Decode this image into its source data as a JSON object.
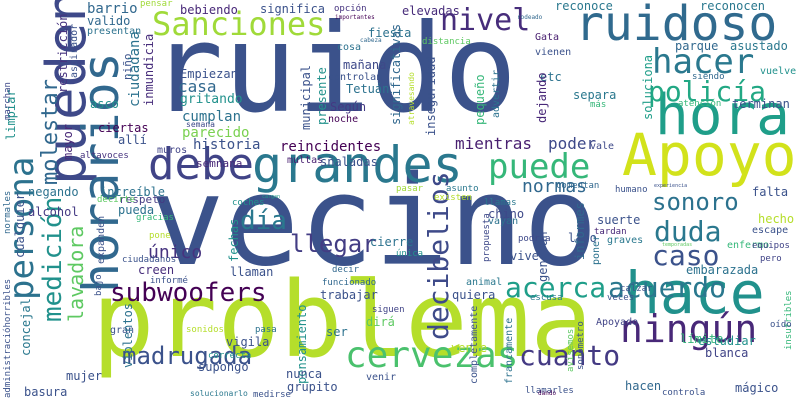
{
  "words": [
    {
      "text": "vecino",
      "color": "#3b528b"
    },
    {
      "text": "ruido",
      "color": "#3b528b"
    },
    {
      "text": "problema",
      "color": "#b5de2b"
    },
    {
      "text": "Apoyo",
      "color": "#d2e21b"
    },
    {
      "text": "grandes",
      "color": "#2a788e"
    },
    {
      "text": "hora",
      "color": "#1f9e89"
    },
    {
      "text": "hace",
      "color": "#21918c"
    },
    {
      "text": "ruidoso",
      "color": "#306a8e"
    },
    {
      "text": "debe",
      "color": "#414487"
    },
    {
      "text": "puede",
      "color": "#35b779"
    },
    {
      "text": "pueden",
      "color": "#3e4989"
    },
    {
      "text": "horarios",
      "color": "#31688e"
    },
    {
      "text": "persona",
      "color": "#2c728e"
    },
    {
      "text": "molestar",
      "color": "#31688e"
    },
    {
      "text": "Sanciones",
      "color": "#a0da39"
    },
    {
      "text": "cervezas",
      "color": "#4ac16d"
    },
    {
      "text": "ningún",
      "color": "#482878"
    },
    {
      "text": "subwoofers",
      "color": "#440154"
    },
    {
      "text": "caso",
      "color": "#3b528b"
    },
    {
      "text": "acuerdo",
      "color": "#2a788e"
    },
    {
      "text": "acerca",
      "color": "#1f9e89"
    },
    {
      "text": "policía",
      "color": "#22a884"
    },
    {
      "text": "decibelios",
      "color": "#3e4a89"
    },
    {
      "text": "madrugada",
      "color": "#3b528b"
    },
    {
      "text": "cuanto",
      "color": "#443a83"
    },
    {
      "text": "duda",
      "color": "#2a788e"
    },
    {
      "text": "sonoro",
      "color": "#2c728e"
    },
    {
      "text": "nivel",
      "color": "#472d7b"
    },
    {
      "text": "medición",
      "color": "#21918c"
    },
    {
      "text": "hacer",
      "color": "#2a788e"
    },
    {
      "text": "día",
      "color": "#2a788e"
    },
    {
      "text": "llegar",
      "color": "#433d84"
    },
    {
      "text": "normas",
      "color": "#31688e"
    },
    {
      "text": "único",
      "color": "#46337f"
    },
    {
      "text": "lavadora",
      "color": "#5ec962"
    },
    {
      "text": "historia",
      "color": "#3b528b"
    },
    {
      "text": "reincidentes",
      "color": "#440154"
    },
    {
      "text": "mientras",
      "color": "#481f70"
    },
    {
      "text": "poder",
      "color": "#3e4989"
    },
    {
      "text": "parecido",
      "color": "#7ad151"
    },
    {
      "text": "cumplan",
      "color": "#2c728e"
    },
    {
      "text": "casa",
      "color": "#31688e"
    },
    {
      "text": "gritando",
      "color": "#21918c"
    },
    {
      "text": "Empiezan",
      "color": "#3b528b"
    },
    {
      "text": "bebiendo",
      "color": "#482878"
    },
    {
      "text": "significa",
      "color": "#3b528b"
    },
    {
      "text": "elevadas",
      "color": "#472c7a"
    },
    {
      "text": "reconoce",
      "color": "#2a788e"
    },
    {
      "text": "reconocen",
      "color": "#2a788e"
    },
    {
      "text": "fiesta",
      "color": "#2c728e"
    },
    {
      "text": "mañana",
      "color": "#3e4989"
    },
    {
      "text": "controlan",
      "color": "#3b528b"
    },
    {
      "text": "Tetuán",
      "color": "#2c728e"
    },
    {
      "text": "Según",
      "color": "#443983"
    },
    {
      "text": "noche",
      "color": "#440154"
    },
    {
      "text": "municipal",
      "color": "#3b528b"
    },
    {
      "text": "presente",
      "color": "#21918c"
    },
    {
      "text": "significativas",
      "color": "#31688e"
    },
    {
      "text": "inseguridad",
      "color": "#3b528b"
    },
    {
      "text": "pequeño",
      "color": "#35b779"
    },
    {
      "text": "advertir",
      "color": "#2c728e"
    },
    {
      "text": "atravesando",
      "color": "#b5de2b"
    },
    {
      "text": "parque",
      "color": "#31688e"
    },
    {
      "text": "asustado",
      "color": "#2a788e"
    },
    {
      "text": "etc",
      "color": "#2c728e"
    },
    {
      "text": "dejando",
      "color": "#482878"
    },
    {
      "text": "separa",
      "color": "#2a788e"
    },
    {
      "text": "soluciona",
      "color": "#1f9e89"
    },
    {
      "text": "terminan",
      "color": "#3b528b"
    },
    {
      "text": "atención",
      "color": "#35b779"
    },
    {
      "text": "siendo",
      "color": "#31688e"
    },
    {
      "text": "vuelve",
      "color": "#21918c"
    },
    {
      "text": "vienen",
      "color": "#3b528b"
    },
    {
      "text": "más",
      "color": "#35b779"
    },
    {
      "text": "Gata",
      "color": "#481f70"
    },
    {
      "text": "barrio",
      "color": "#31688e"
    },
    {
      "text": "valido",
      "color": "#31688e"
    },
    {
      "text": "presentan",
      "color": "#2c728e"
    },
    {
      "text": "pensar",
      "color": "#a0da39"
    },
    {
      "text": "opción",
      "color": "#46337f"
    },
    {
      "text": "importantes",
      "color": "#440154"
    },
    {
      "text": "rodeado",
      "color": "#31688e"
    },
    {
      "text": "cosa",
      "color": "#2c728e"
    },
    {
      "text": "cabeza",
      "color": "#31688e"
    },
    {
      "text": "distancia",
      "color": "#5ec962"
    },
    {
      "text": "limpiar",
      "color": "#21918c"
    },
    {
      "text": "restricción",
      "color": "#46337f"
    },
    {
      "text": "aspirador",
      "color": "#3b528b"
    },
    {
      "text": "niño",
      "color": "#3b528b"
    },
    {
      "text": "ciudadana",
      "color": "#2c728e"
    },
    {
      "text": "inmundicia",
      "color": "#472d7b"
    },
    {
      "text": "asco",
      "color": "#21918c"
    },
    {
      "text": "semana",
      "color": "#3e4989"
    },
    {
      "text": "ciertas",
      "color": "#440154"
    },
    {
      "text": "allí",
      "color": "#3b528b"
    },
    {
      "text": "muros",
      "color": "#414487"
    },
    {
      "text": "mayor",
      "color": "#482878"
    },
    {
      "text": "altavoces",
      "color": "#46337f"
    },
    {
      "text": "vale",
      "color": "#3e4989"
    },
    {
      "text": "semnana",
      "color": "#482878"
    },
    {
      "text": "multas",
      "color": "#481f70"
    },
    {
      "text": "sñaladas",
      "color": "#3b528b"
    },
    {
      "text": "pasar",
      "color": "#a0da39"
    },
    {
      "text": "asunto",
      "color": "#2a788e"
    },
    {
      "text": "comentan",
      "color": "#31688e"
    },
    {
      "text": "humano",
      "color": "#3b528b"
    },
    {
      "text": "experiencia",
      "color": "#3b528b"
    },
    {
      "text": "falta",
      "color": "#3b528b"
    },
    {
      "text": "negando",
      "color": "#2c728e"
    },
    {
      "text": "increíble",
      "color": "#2c728e"
    },
    {
      "text": "respeto",
      "color": "#443a83"
    },
    {
      "text": "alcohol",
      "color": "#443a83"
    },
    {
      "text": "pueda",
      "color": "#2c728e"
    },
    {
      "text": "decirte",
      "color": "#5ec962"
    },
    {
      "text": "gracias",
      "color": "#35b779"
    },
    {
      "text": "pone",
      "color": "#b5de2b"
    },
    {
      "text": "coches",
      "color": "#21918c"
    },
    {
      "text": "cargan",
      "color": "#1f9e89"
    },
    {
      "text": "existen",
      "color": "#b5de2b"
    },
    {
      "text": "llamas",
      "color": "#2a788e"
    },
    {
      "text": "chino",
      "color": "#3e4989"
    },
    {
      "text": "suerte",
      "color": "#3b528b"
    },
    {
      "text": "hecho",
      "color": "#b5de2b"
    },
    {
      "text": "escape",
      "color": "#3b528b"
    },
    {
      "text": "tardan",
      "color": "#482878"
    },
    {
      "text": "graves",
      "color": "#2a788e"
    },
    {
      "text": "enfermo",
      "color": "#35b779"
    },
    {
      "text": "equipos",
      "color": "#414487"
    },
    {
      "text": "embarazada",
      "color": "#2c728e"
    },
    {
      "text": "pero",
      "color": "#414487"
    },
    {
      "text": "lado",
      "color": "#3b528b"
    },
    {
      "text": "informes",
      "color": "#31688e"
    },
    {
      "text": "poner",
      "color": "#2c728e"
    },
    {
      "text": "temporadas",
      "color": "#5ec962"
    },
    {
      "text": "podría",
      "color": "#3e4989"
    },
    {
      "text": "propuesta",
      "color": "#3e4989"
    },
    {
      "text": "vayan",
      "color": "#2c728e"
    },
    {
      "text": "generan",
      "color": "#3b528b"
    },
    {
      "text": "vive",
      "color": "#3b528b"
    },
    {
      "text": "cierre",
      "color": "#2c728e"
    },
    {
      "text": "única",
      "color": "#21918c"
    },
    {
      "text": "ciudadanos",
      "color": "#3b528b"
    },
    {
      "text": "creen",
      "color": "#472d7b"
    },
    {
      "text": "llaman",
      "color": "#3b528b"
    },
    {
      "text": "informé",
      "color": "#3b528b"
    },
    {
      "text": "fechas",
      "color": "#21918c"
    },
    {
      "text": "expanden",
      "color": "#3b528b"
    },
    {
      "text": "decir",
      "color": "#31688e"
    },
    {
      "text": "funcionado",
      "color": "#31688e"
    },
    {
      "text": "trabajar",
      "color": "#3b528b"
    },
    {
      "text": "quiera",
      "color": "#3b528b"
    },
    {
      "text": "animal",
      "color": "#2a788e"
    },
    {
      "text": "calzar",
      "color": "#3b528b"
    },
    {
      "text": "siguen",
      "color": "#414487"
    },
    {
      "text": "escusa",
      "color": "#2a788e"
    },
    {
      "text": "veces",
      "color": "#3b528b"
    },
    {
      "text": "administracióhorribles",
      "color": "#3b528b"
    },
    {
      "text": "normales",
      "color": "#31688e"
    },
    {
      "text": "marchan",
      "color": "#3e4989"
    },
    {
      "text": "cualquier",
      "color": "#3b528b"
    },
    {
      "text": "concejal",
      "color": "#2a788e"
    },
    {
      "text": "bajo",
      "color": "#3b528b"
    },
    {
      "text": "gran",
      "color": "#3b528b"
    },
    {
      "text": "sonidos",
      "color": "#b5de2b"
    },
    {
      "text": "violentos",
      "color": "#2c728e"
    },
    {
      "text": "vigila",
      "color": "#3b528b"
    },
    {
      "text": "supongo",
      "color": "#3b528b"
    },
    {
      "text": "pensamiento",
      "color": "#21918c"
    },
    {
      "text": "ser",
      "color": "#2c728e"
    },
    {
      "text": "dirá",
      "color": "#5ec962"
    },
    {
      "text": "pasa",
      "color": "#2c728e"
    },
    {
      "text": "correcta",
      "color": "#21918c"
    },
    {
      "text": "grupito",
      "color": "#3b528b"
    },
    {
      "text": "nunca",
      "color": "#3b528b"
    },
    {
      "text": "venir",
      "color": "#3b528b"
    },
    {
      "text": "vende",
      "color": "#b5de2b"
    },
    {
      "text": "completamente",
      "color": "#3b528b"
    },
    {
      "text": "francamente",
      "color": "#2c728e"
    },
    {
      "text": "avisemos",
      "color": "#5ec962"
    },
    {
      "text": "sonómetro",
      "color": "#3b528b"
    },
    {
      "text": "Apoyado",
      "color": "#414487"
    },
    {
      "text": "límite",
      "color": "#35b779"
    },
    {
      "text": "estudiar",
      "color": "#21918c"
    },
    {
      "text": "blanca",
      "color": "#414487"
    },
    {
      "text": "insufribles",
      "color": "#35b779"
    },
    {
      "text": "oído",
      "color": "#3b528b"
    },
    {
      "text": "mágico",
      "color": "#3b528b"
    },
    {
      "text": "controla",
      "color": "#3b528b"
    },
    {
      "text": "llamarles",
      "color": "#3b528b"
    },
    {
      "text": "dando",
      "color": "#440154"
    },
    {
      "text": "hacen",
      "color": "#31688e"
    },
    {
      "text": "solucionarlo",
      "color": "#2a788e"
    },
    {
      "text": "medirse",
      "color": "#3b528b"
    },
    {
      "text": "mujer",
      "color": "#3b528b"
    },
    {
      "text": "basura",
      "color": "#3b528b"
    }
  ]
}
